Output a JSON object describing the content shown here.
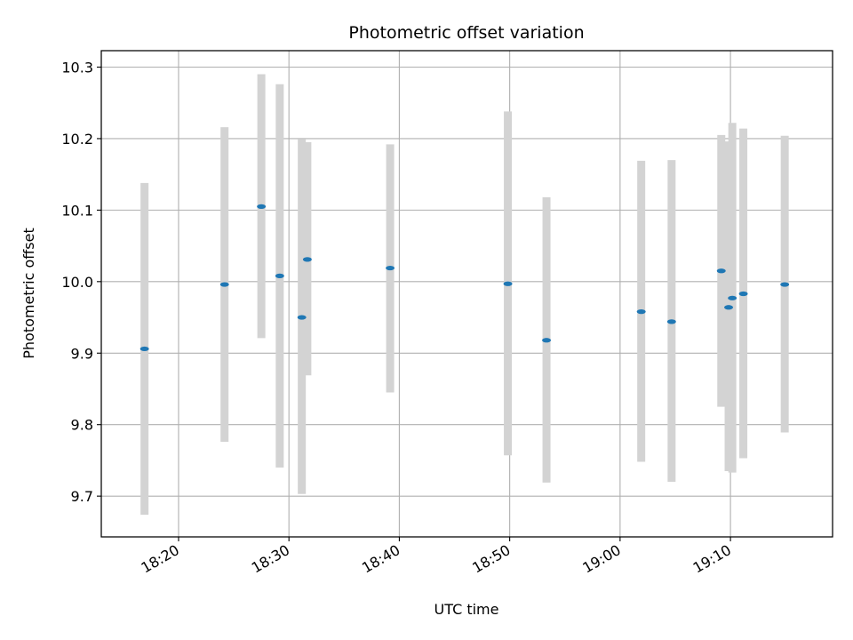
{
  "chart_data": {
    "type": "scatter",
    "title": "Photometric offset variation",
    "xlabel": "UTC time",
    "ylabel": "Photometric offset",
    "x_ticks": [
      "18:20",
      "18:30",
      "18:40",
      "18:50",
      "19:00",
      "19:10"
    ],
    "y_ticks": [
      "9.7",
      "9.8",
      "9.9",
      "10.0",
      "10.1",
      "10.2",
      "10.3"
    ],
    "xlim": [
      "18:13:00",
      "19:19:15"
    ],
    "ylim": [
      9.643,
      10.323
    ],
    "grid": true,
    "error_bars": true,
    "points": [
      {
        "x": "18:16:55",
        "y": 9.906,
        "err_low": 9.674,
        "err_high": 10.138
      },
      {
        "x": "18:24:10",
        "y": 9.996,
        "err_low": 9.776,
        "err_high": 10.216
      },
      {
        "x": "18:27:30",
        "y": 10.105,
        "err_low": 9.921,
        "err_high": 10.29
      },
      {
        "x": "18:29:10",
        "y": 10.008,
        "err_low": 9.74,
        "err_high": 10.276
      },
      {
        "x": "18:31:10",
        "y": 9.95,
        "err_low": 9.703,
        "err_high": 10.199
      },
      {
        "x": "18:31:40",
        "y": 10.031,
        "err_low": 9.869,
        "err_high": 10.195
      },
      {
        "x": "18:39:10",
        "y": 10.019,
        "err_low": 9.845,
        "err_high": 10.192
      },
      {
        "x": "18:49:50",
        "y": 9.997,
        "err_low": 9.757,
        "err_high": 10.238
      },
      {
        "x": "18:53:20",
        "y": 9.918,
        "err_low": 9.719,
        "err_high": 10.118
      },
      {
        "x": "19:01:55",
        "y": 9.958,
        "err_low": 9.748,
        "err_high": 10.169
      },
      {
        "x": "19:04:40",
        "y": 9.944,
        "err_low": 9.72,
        "err_high": 10.17
      },
      {
        "x": "19:09:10",
        "y": 10.015,
        "err_low": 9.825,
        "err_high": 10.205
      },
      {
        "x": "19:09:50",
        "y": 9.964,
        "err_low": 9.735,
        "err_high": 10.196
      },
      {
        "x": "19:10:10",
        "y": 9.977,
        "err_low": 9.733,
        "err_high": 10.222
      },
      {
        "x": "19:11:10",
        "y": 9.983,
        "err_low": 9.753,
        "err_high": 10.214
      },
      {
        "x": "19:14:55",
        "y": 9.996,
        "err_low": 9.789,
        "err_high": 10.204
      }
    ]
  },
  "colors": {
    "marker": "#1f77b4",
    "error_bar": "#d3d3d3",
    "grid": "#b0b0b0",
    "axes": "#000000",
    "background": "#ffffff"
  }
}
